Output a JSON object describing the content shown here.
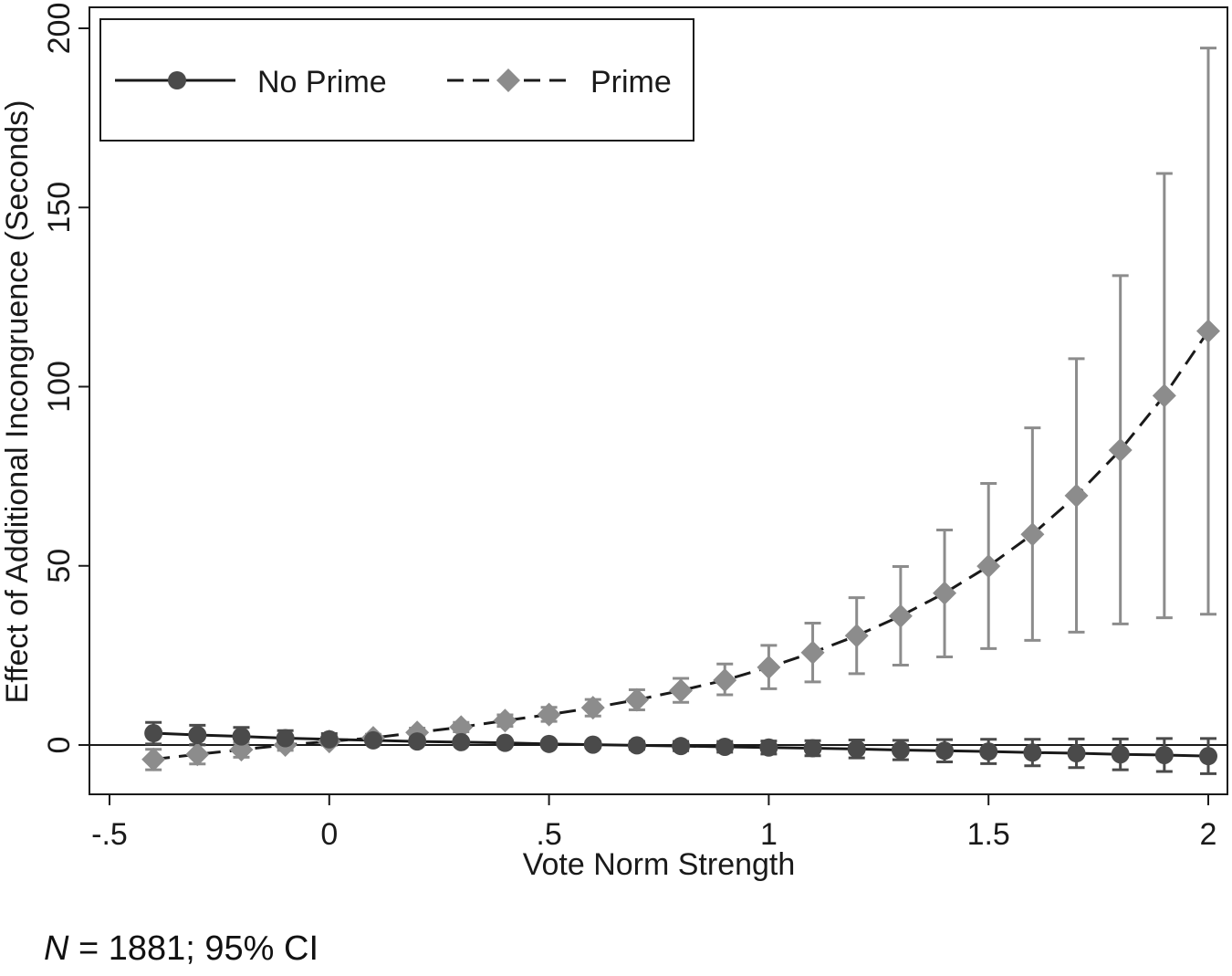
{
  "chart_data": {
    "type": "line",
    "xlabel": "Vote Norm Strength",
    "ylabel": "Effect of Additional Incongruence (Seconds)",
    "xlim": [
      -0.55,
      2.05
    ],
    "ylim": [
      -14,
      205
    ],
    "xticks": [
      -0.5,
      0,
      0.5,
      1,
      1.5,
      2
    ],
    "xtick_labels": [
      "-.5",
      "0",
      ".5",
      "1",
      "1.5",
      "2"
    ],
    "yticks": [
      0,
      50,
      100,
      150,
      200
    ],
    "ytick_labels": [
      "0",
      "50",
      "100",
      "150",
      "200"
    ],
    "reference_line_y": 0,
    "grid": false,
    "legend_position": "top-left",
    "x": [
      -0.4,
      -0.3,
      -0.2,
      -0.1,
      0,
      0.1,
      0.2,
      0.3,
      0.4,
      0.5,
      0.6,
      0.7,
      0.8,
      0.9,
      1.0,
      1.1,
      1.2,
      1.3,
      1.4,
      1.5,
      1.6,
      1.7,
      1.8,
      1.9,
      2.0
    ],
    "series": [
      {
        "name": "No Prime",
        "color": "#4a4a4a",
        "marker": "circle",
        "line_style": "solid",
        "values": [
          3.3,
          2.8,
          2.4,
          1.9,
          1.6,
          1.3,
          1.0,
          0.8,
          0.6,
          0.3,
          0.1,
          -0.1,
          -0.3,
          -0.5,
          -0.7,
          -0.9,
          -1.1,
          -1.4,
          -1.6,
          -1.8,
          -2.1,
          -2.3,
          -2.6,
          -2.8,
          -3.1
        ],
        "ci_lower": [
          0.3,
          0.1,
          -0.1,
          -0.2,
          0.0,
          0.5,
          0.3,
          0.2,
          -0.1,
          -0.5,
          -0.8,
          -1.2,
          -1.6,
          -2.0,
          -2.5,
          -3.0,
          -3.6,
          -4.1,
          -4.7,
          -5.2,
          -5.8,
          -6.3,
          -6.9,
          -7.4,
          -8.0
        ],
        "ci_upper": [
          6.3,
          5.5,
          4.9,
          4.0,
          3.2,
          2.1,
          1.7,
          1.4,
          1.3,
          1.1,
          1.0,
          1.0,
          1.0,
          1.0,
          1.1,
          1.2,
          1.4,
          1.3,
          1.5,
          1.6,
          1.6,
          1.7,
          1.7,
          1.8,
          1.8
        ]
      },
      {
        "name": "Prime",
        "color": "#8c8c8c",
        "marker": "diamond",
        "line_style": "dashed",
        "values": [
          -4.0,
          -2.6,
          -1.3,
          0.0,
          1.0,
          2.0,
          3.5,
          5.0,
          6.8,
          8.5,
          10.4,
          12.6,
          15.2,
          18.1,
          21.7,
          25.8,
          30.5,
          36.0,
          42.4,
          49.9,
          58.8,
          69.6,
          82.3,
          97.5,
          115.5
        ],
        "ci_lower": [
          -6.9,
          -5.3,
          -3.4,
          -1.5,
          0.0,
          1.0,
          2.4,
          3.7,
          5.2,
          6.6,
          8.1,
          9.8,
          11.9,
          14.0,
          15.7,
          17.6,
          19.9,
          22.3,
          24.6,
          26.9,
          29.2,
          31.5,
          33.8,
          35.5,
          36.5
        ],
        "ci_upper": [
          -1.2,
          0.0,
          0.7,
          1.5,
          2.0,
          3.0,
          4.7,
          6.3,
          8.4,
          10.5,
          12.7,
          15.4,
          18.6,
          22.6,
          27.8,
          34.0,
          41.1,
          49.8,
          60.0,
          73.0,
          88.5,
          107.8,
          131.0,
          159.5,
          194.5
        ]
      }
    ]
  },
  "note": {
    "n_symbol": "N",
    "text": " = 1881; 95% CI"
  }
}
